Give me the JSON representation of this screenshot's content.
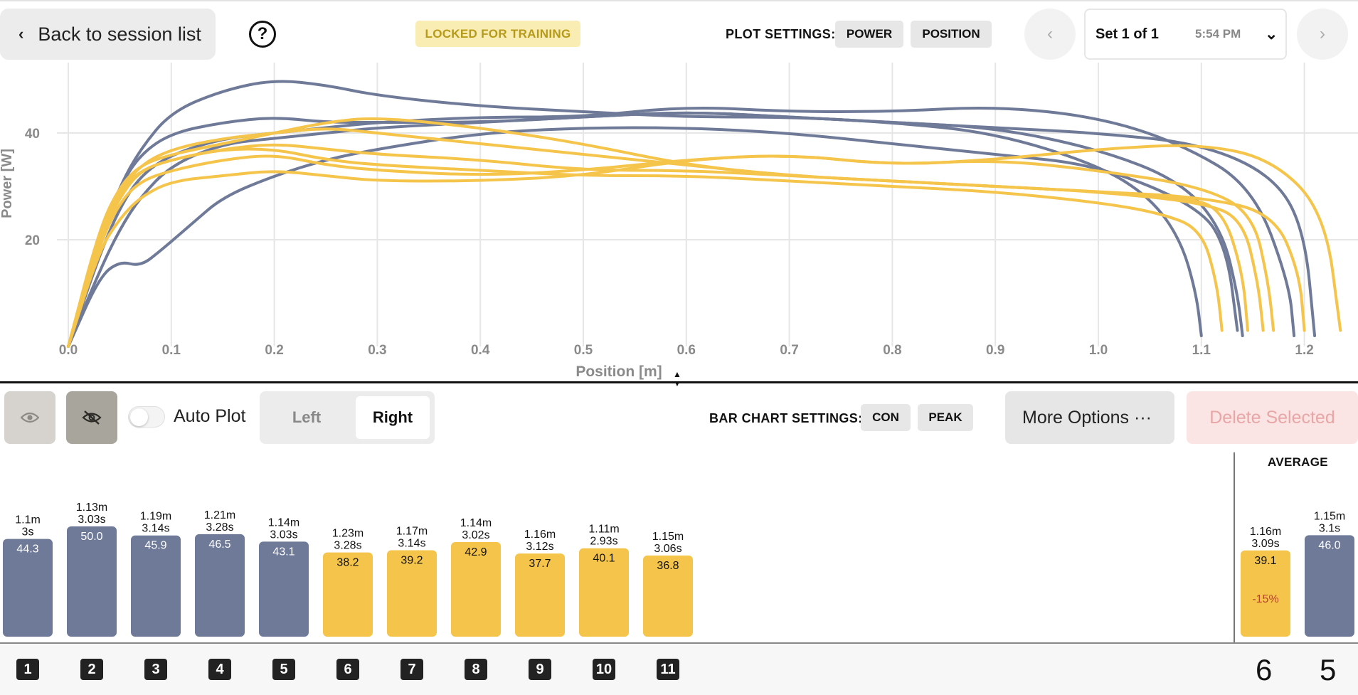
{
  "header": {
    "back_label": "Back to session list",
    "help_glyph": "?",
    "locked_label": "LOCKED FOR TRAINING",
    "plot_settings_label": "PLOT SETTINGS:",
    "plot_chips": [
      "POWER",
      "POSITION"
    ],
    "set_label": "Set 1 of 1",
    "set_time": "5:54 PM"
  },
  "toolbar": {
    "auto_plot_label": "Auto Plot",
    "side_left": "Left",
    "side_right": "Right",
    "bar_settings_label": "BAR CHART SETTINGS:",
    "bar_chips": [
      "CON",
      "PEAK"
    ],
    "more_options_label": "More Options ···",
    "delete_label": "Delete Selected"
  },
  "colors": {
    "left_series": "#6f7a98",
    "right_series": "#f5c44a",
    "locked_bg": "#faedb3",
    "locked_text": "#b69a1a",
    "delete_text": "#e8a6a6"
  },
  "chart_data": [
    {
      "type": "line",
      "xlabel": "Position [m]",
      "ylabel": "Power [W]",
      "xlim": [
        0.0,
        1.25
      ],
      "ylim": [
        0,
        52
      ],
      "xticks": [
        "0.0",
        "0.1",
        "0.2",
        "0.3",
        "0.4",
        "0.5",
        "0.6",
        "0.7",
        "0.8",
        "0.9",
        "1.0",
        "1.1",
        "1.2"
      ],
      "yticks": [
        "20",
        "40"
      ],
      "grid": true,
      "series": [
        {
          "group": "left",
          "x": [
            0,
            0.03,
            0.05,
            0.07,
            0.1,
            0.15,
            0.2,
            0.25,
            0.3,
            0.4,
            0.5,
            0.6,
            0.7,
            0.8,
            0.9,
            1.0,
            1.05,
            1.08,
            1.095,
            1.1
          ],
          "y": [
            0,
            20,
            30,
            36,
            40,
            42,
            43,
            42,
            42,
            42,
            43,
            44,
            43,
            42,
            40,
            34,
            28,
            20,
            10,
            2
          ]
        },
        {
          "group": "left",
          "x": [
            0,
            0.03,
            0.05,
            0.07,
            0.1,
            0.15,
            0.2,
            0.25,
            0.3,
            0.4,
            0.5,
            0.6,
            0.7,
            0.8,
            0.9,
            1.0,
            1.08,
            1.12,
            1.135,
            1.14
          ],
          "y": [
            0,
            20,
            30,
            37,
            44,
            48,
            50,
            49,
            47,
            45,
            44,
            43,
            43,
            42,
            41,
            37,
            31,
            22,
            10,
            2
          ]
        },
        {
          "group": "left",
          "x": [
            0,
            0.03,
            0.05,
            0.07,
            0.1,
            0.15,
            0.2,
            0.25,
            0.3,
            0.4,
            0.5,
            0.6,
            0.7,
            0.8,
            0.9,
            1.0,
            1.08,
            1.15,
            1.185,
            1.19
          ],
          "y": [
            0,
            17,
            26,
            32,
            36,
            39,
            40,
            41,
            42,
            43,
            43,
            45,
            44,
            44,
            45,
            43,
            38,
            30,
            12,
            2
          ]
        },
        {
          "group": "left",
          "x": [
            0,
            0.03,
            0.05,
            0.07,
            0.1,
            0.15,
            0.2,
            0.25,
            0.3,
            0.4,
            0.5,
            0.6,
            0.7,
            0.8,
            0.9,
            1.0,
            1.1,
            1.17,
            1.2,
            1.21
          ],
          "y": [
            0,
            14,
            22,
            28,
            34,
            38,
            39,
            40,
            41,
            42,
            43,
            44,
            43,
            42,
            41,
            40,
            38,
            32,
            22,
            2
          ]
        },
        {
          "group": "left",
          "x": [
            0,
            0.03,
            0.05,
            0.07,
            0.09,
            0.12,
            0.15,
            0.2,
            0.25,
            0.3,
            0.4,
            0.5,
            0.6,
            0.7,
            0.8,
            0.9,
            1.0,
            1.1,
            1.125,
            1.135
          ],
          "y": [
            0,
            13,
            16,
            15,
            18,
            23,
            28,
            32,
            35,
            37,
            40,
            41,
            41,
            40,
            38,
            36,
            34,
            26,
            18,
            3
          ]
        },
        {
          "group": "right",
          "x": [
            0,
            0.03,
            0.05,
            0.07,
            0.1,
            0.15,
            0.2,
            0.25,
            0.3,
            0.4,
            0.5,
            0.6,
            0.7,
            0.8,
            0.9,
            1.0,
            1.06,
            1.1,
            1.115,
            1.12
          ],
          "y": [
            0,
            20,
            28,
            33,
            35,
            37,
            37,
            35,
            34,
            33,
            32,
            32,
            31,
            30,
            29,
            27,
            25,
            22,
            12,
            3
          ]
        },
        {
          "group": "right",
          "x": [
            0,
            0.03,
            0.05,
            0.07,
            0.1,
            0.15,
            0.2,
            0.25,
            0.3,
            0.4,
            0.5,
            0.6,
            0.7,
            0.8,
            0.9,
            1.0,
            1.08,
            1.12,
            1.14,
            1.145
          ],
          "y": [
            0,
            22,
            30,
            34,
            36,
            38,
            40,
            42,
            43,
            41,
            38,
            34,
            32,
            31,
            30,
            29,
            28,
            26,
            14,
            3
          ]
        },
        {
          "group": "right",
          "x": [
            0,
            0.03,
            0.05,
            0.07,
            0.1,
            0.15,
            0.2,
            0.25,
            0.3,
            0.4,
            0.5,
            0.6,
            0.7,
            0.8,
            0.9,
            1.0,
            1.1,
            1.14,
            1.155,
            1.16
          ],
          "y": [
            0,
            21,
            29,
            33,
            35,
            37,
            38,
            37,
            36,
            35,
            33,
            33,
            32,
            31,
            30,
            29,
            27,
            24,
            12,
            3
          ]
        },
        {
          "group": "right",
          "x": [
            0,
            0.03,
            0.05,
            0.07,
            0.1,
            0.15,
            0.2,
            0.25,
            0.3,
            0.4,
            0.5,
            0.6,
            0.7,
            0.8,
            0.9,
            1.0,
            1.1,
            1.15,
            1.165,
            1.17
          ],
          "y": [
            0,
            19,
            27,
            31,
            33,
            35,
            36,
            34,
            33,
            32,
            33,
            35,
            36,
            34,
            35,
            33,
            30,
            25,
            12,
            3
          ]
        },
        {
          "group": "right",
          "x": [
            0,
            0.03,
            0.05,
            0.07,
            0.1,
            0.15,
            0.2,
            0.25,
            0.3,
            0.4,
            0.5,
            0.6,
            0.7,
            0.8,
            0.9,
            1.0,
            1.1,
            1.17,
            1.22,
            1.235
          ],
          "y": [
            0,
            18,
            24,
            28,
            31,
            32,
            33,
            32,
            31,
            31,
            32,
            35,
            36,
            34,
            35,
            37,
            38,
            35,
            25,
            3
          ]
        },
        {
          "group": "right",
          "x": [
            0,
            0.03,
            0.05,
            0.07,
            0.1,
            0.15,
            0.2,
            0.25,
            0.3,
            0.4,
            0.5,
            0.6,
            0.7,
            0.8,
            0.9,
            1.0,
            1.1,
            1.17,
            1.195,
            1.2
          ],
          "y": [
            0,
            21,
            29,
            34,
            37,
            39,
            40,
            41,
            40,
            38,
            36,
            34,
            32,
            31,
            30,
            29,
            28,
            25,
            14,
            3
          ]
        }
      ]
    },
    {
      "type": "bar",
      "categories": [
        "1",
        "2",
        "3",
        "4",
        "5",
        "6",
        "7",
        "8",
        "9",
        "10",
        "11"
      ],
      "groups": [
        "left",
        "left",
        "left",
        "left",
        "left",
        "right",
        "right",
        "right",
        "right",
        "right",
        "right"
      ],
      "values": [
        44.3,
        50.0,
        45.9,
        46.5,
        43.1,
        38.2,
        39.2,
        42.9,
        37.7,
        40.1,
        36.8
      ],
      "distance_labels": [
        "1.1m",
        "1.13m",
        "1.19m",
        "1.21m",
        "1.14m",
        "1.23m",
        "1.17m",
        "1.14m",
        "1.16m",
        "1.11m",
        "1.15m"
      ],
      "time_labels": [
        "3s",
        "3.03s",
        "3.14s",
        "3.28s",
        "3.03s",
        "3.28s",
        "3.14s",
        "3.02s",
        "3.12s",
        "2.93s",
        "3.06s"
      ],
      "average": {
        "title": "AVERAGE",
        "right": {
          "value": 39.1,
          "distance": "1.16m",
          "time": "3.09s",
          "diff": "-15%",
          "count": "6"
        },
        "left": {
          "value": 46.0,
          "distance": "1.15m",
          "time": "3.1s",
          "count": "5"
        }
      }
    }
  ]
}
